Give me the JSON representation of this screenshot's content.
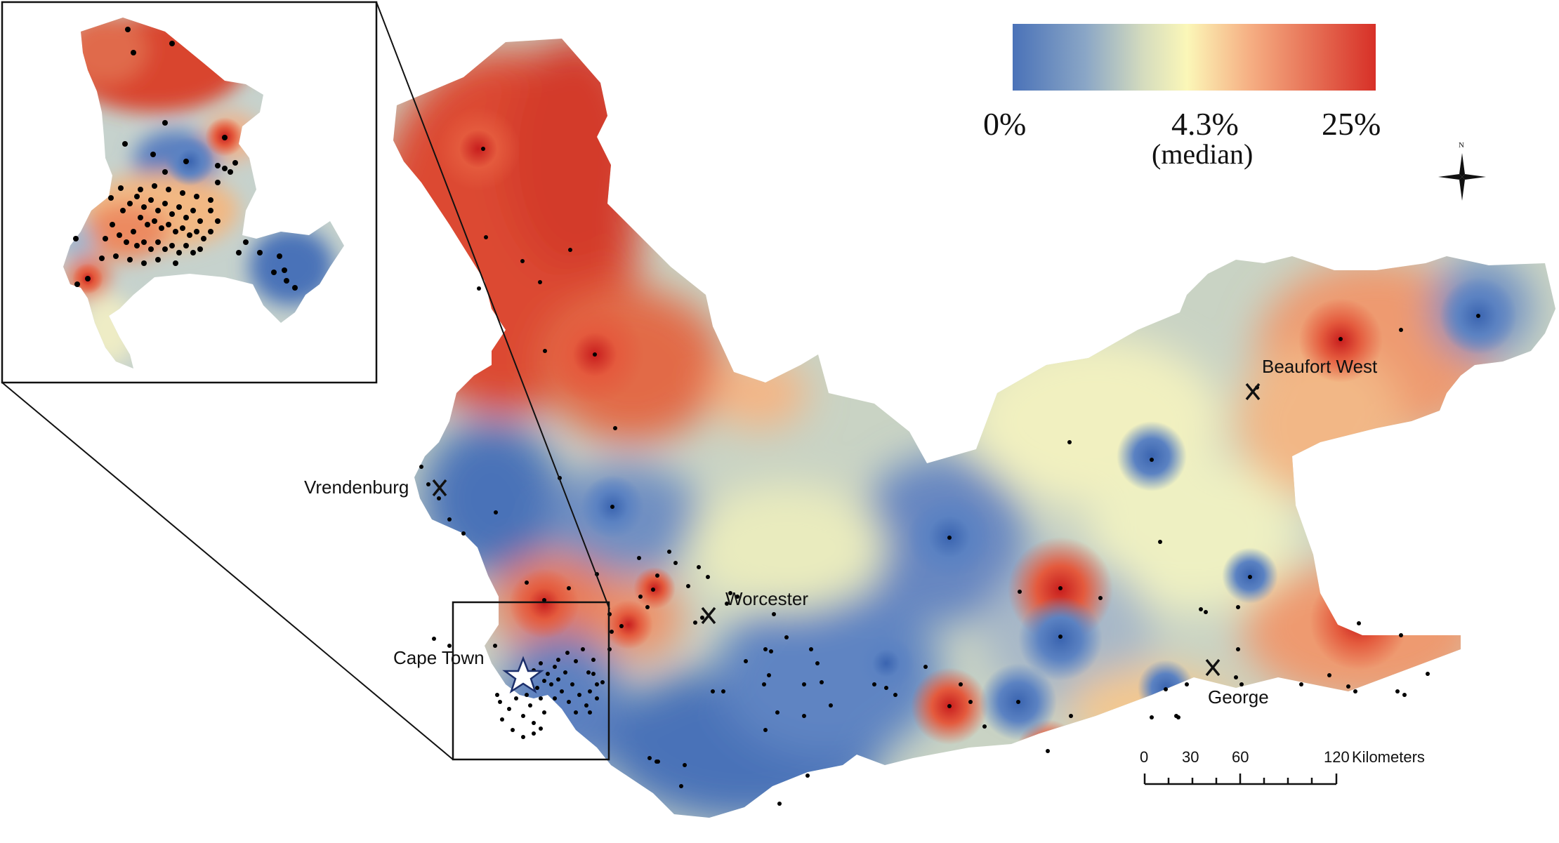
{
  "legend": {
    "min_label": "0%",
    "median_label": "4.3%",
    "median_sub": "(median)",
    "max_label": "25%",
    "colors": [
      "#4a72b8",
      "#9fb4c8",
      "#fbf6c0",
      "#f0906a",
      "#d93a2b"
    ]
  },
  "cities": {
    "vrendenburg": "Vrendenburg",
    "cape_town": "Cape Town",
    "worcester": "Worcester",
    "george": "George",
    "beaufort_west": "Beaufort West"
  },
  "scale_bar": {
    "ticks": [
      "0",
      "30",
      "60",
      "120"
    ],
    "unit": "Kilometers"
  },
  "north_arrow": {
    "label": "N"
  },
  "inset": {
    "title": ""
  }
}
